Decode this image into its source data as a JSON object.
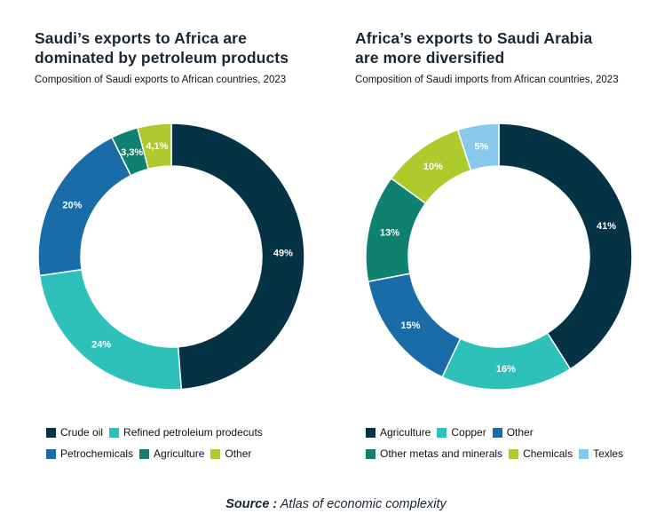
{
  "colors": {
    "dark": "#053244",
    "teal_light": "#2dc1b9",
    "blue": "#1a6ca8",
    "green": "#0e8170",
    "lime": "#afca2d",
    "sky": "#88c8ec",
    "label_text": "#ffffff",
    "title_text": "#1a2733"
  },
  "source": {
    "label": "Source :",
    "text": "Atlas of economic complexity"
  },
  "chart_data": [
    {
      "type": "pie",
      "title_lines": [
        "Saudi’s exports to Africa are",
        "dominated by petroleum products"
      ],
      "subtitle": "Composition of Saudi exports to African countries, 2023",
      "donut": true,
      "slices": [
        {
          "name": "Crude oil",
          "value": 49,
          "label": "49%",
          "color": "#053244"
        },
        {
          "name": "Refined petroleium prodecuts",
          "value": 24,
          "label": "24%",
          "color": "#2dc1b9"
        },
        {
          "name": "Petrochemicals",
          "value": 20,
          "label": "20%",
          "color": "#1a6ca8"
        },
        {
          "name": "Agriculture",
          "value": 3.3,
          "label": "3,3%",
          "color": "#0e8170"
        },
        {
          "name": "Other",
          "value": 4.1,
          "label": "4,1%",
          "color": "#afca2d"
        }
      ],
      "legend_rows": [
        [
          "Crude oil",
          "Refined petroleium prodecuts"
        ],
        [
          "Petrochemicals",
          "Agriculture",
          "Other"
        ]
      ]
    },
    {
      "type": "pie",
      "title_lines": [
        "Africa’s exports to Saudi Arabia",
        "are more diversified"
      ],
      "subtitle": "Composition of Saudi imports from African countries, 2023",
      "donut": true,
      "slices": [
        {
          "name": "Agriculture",
          "value": 41,
          "label": "41%",
          "color": "#053244"
        },
        {
          "name": "Copper",
          "value": 16,
          "label": "16%",
          "color": "#2dc1b9"
        },
        {
          "name": "Other",
          "value": 15,
          "label": "15%",
          "color": "#1a6ca8"
        },
        {
          "name": "Other metas and minerals",
          "value": 13,
          "label": "13%",
          "color": "#0e8170"
        },
        {
          "name": "Chemicals",
          "value": 10,
          "label": "10%",
          "color": "#afca2d"
        },
        {
          "name": "Texles",
          "value": 5,
          "label": "5%",
          "color": "#88c8ec"
        }
      ],
      "legend_rows": [
        [
          "Agriculture",
          "Copper",
          "Other"
        ],
        [
          "Other metas and minerals",
          "Chemicals",
          "Texles"
        ]
      ]
    }
  ]
}
